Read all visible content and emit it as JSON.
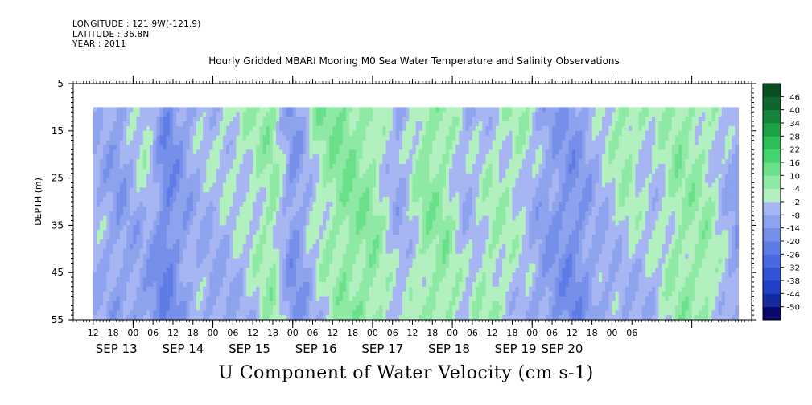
{
  "header": {
    "longitude": "LONGITUDE : 121.9W(-121.9)",
    "latitude": "LATITUDE : 36.8N",
    "year": "YEAR : 2011"
  },
  "chart_data": {
    "type": "heatmap",
    "title": "Hourly Gridded MBARI Mooring M0 Sea Water Temperature and Salinity Observations",
    "xlabel": "U Component of Water Velocity (cm s-1)",
    "ylabel": "DEPTH (m)",
    "ylim": [
      5,
      55
    ],
    "y_inverted": true,
    "y_ticks": [
      5,
      15,
      25,
      35,
      45,
      55
    ],
    "x_range_hours": [
      0,
      204
    ],
    "x_start": "SEP 13 06:00",
    "data_start_hour": 6,
    "data_end_hour": 200,
    "data_depth_range": [
      10,
      55
    ],
    "x_hour_tick_labels": [
      "12",
      "18",
      "00",
      "06",
      "12",
      "18",
      "00",
      "06",
      "12",
      "18",
      "00",
      "06",
      "12",
      "18",
      "00",
      "06",
      "12",
      "18",
      "00",
      "06",
      "12",
      "18",
      "00",
      "06",
      "12",
      "18",
      "00",
      "06"
    ],
    "x_date_labels": [
      "SEP 13",
      "SEP 14",
      "SEP 15",
      "SEP 16",
      "SEP 17",
      "SEP 18",
      "SEP 19",
      "SEP 20"
    ],
    "colorbar": {
      "levels": [
        -50,
        -44,
        -38,
        -32,
        -26,
        -20,
        -14,
        -8,
        -2,
        4,
        10,
        16,
        22,
        28,
        34,
        40,
        46
      ],
      "labels": [
        "46",
        "40",
        "34",
        "28",
        "22",
        "16",
        "10",
        "4",
        "-2",
        "-8",
        "-14",
        "-20",
        "-26",
        "-32",
        "-38",
        "-44",
        "-50"
      ],
      "colors": [
        "#0a0a6e",
        "#152a9e",
        "#2140c8",
        "#3454d8",
        "#4a68e0",
        "#5f7ce6",
        "#7690ea",
        "#8ea3ee",
        "#a7b6f2",
        "#b2f0c0",
        "#8ee9a4",
        "#6be08a",
        "#45d46e",
        "#2dbf58",
        "#1fa148",
        "#17833a",
        "#0f662c",
        "#074f20"
      ]
    },
    "field_pattern": [
      {
        "hour": 6,
        "top": -6,
        "bottom": -6
      },
      {
        "hour": 14,
        "top": -12,
        "bottom": -10
      },
      {
        "hour": 22,
        "top": 4,
        "bottom": -14
      },
      {
        "hour": 28,
        "top": -18,
        "bottom": -20
      },
      {
        "hour": 36,
        "top": -8,
        "bottom": -6
      },
      {
        "hour": 42,
        "top": -2,
        "bottom": -10
      },
      {
        "hour": 52,
        "top": 2,
        "bottom": -6
      },
      {
        "hour": 60,
        "top": 6,
        "bottom": 4
      },
      {
        "hour": 66,
        "top": -14,
        "bottom": -16
      },
      {
        "hour": 74,
        "top": 6,
        "bottom": -4
      },
      {
        "hour": 82,
        "top": 10,
        "bottom": 6
      },
      {
        "hour": 90,
        "top": 4,
        "bottom": 8
      },
      {
        "hour": 98,
        "top": -10,
        "bottom": -6
      },
      {
        "hour": 106,
        "top": 8,
        "bottom": 4
      },
      {
        "hour": 112,
        "top": 4,
        "bottom": 6
      },
      {
        "hour": 118,
        "top": -8,
        "bottom": -4
      },
      {
        "hour": 126,
        "top": -2,
        "bottom": 6
      },
      {
        "hour": 134,
        "top": 4,
        "bottom": -6
      },
      {
        "hour": 142,
        "top": -10,
        "bottom": -12
      },
      {
        "hour": 150,
        "top": -14,
        "bottom": -18
      },
      {
        "hour": 158,
        "top": -4,
        "bottom": -10
      },
      {
        "hour": 166,
        "top": 8,
        "bottom": -8
      },
      {
        "hour": 174,
        "top": -2,
        "bottom": -6
      },
      {
        "hour": 182,
        "top": 6,
        "bottom": 4
      },
      {
        "hour": 190,
        "top": 2,
        "bottom": 6
      },
      {
        "hour": 200,
        "top": -10,
        "bottom": -12
      }
    ]
  }
}
